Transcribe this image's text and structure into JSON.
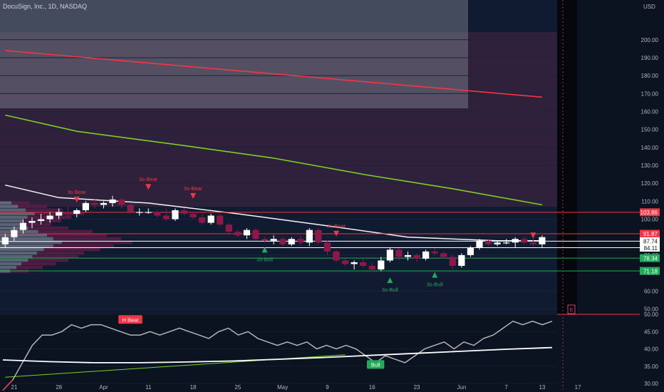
{
  "header": {
    "title": "DocuSign, Inc., 1D, NASDAQ",
    "currency": "USD"
  },
  "colors": {
    "background": "#0b1220",
    "bull": "#ffffff",
    "bear": "#8b1a4a",
    "ema_red": "#f23645",
    "ema_green": "#7ccf25",
    "sma_white": "#f5f5f5",
    "level_red": "#f23645",
    "level_green": "#22ab59",
    "signal_bear": "#f23645",
    "signal_bull": "#22ab59",
    "rsi_line": "#b5b5b5"
  },
  "chart_data": [
    {
      "type": "candlestick",
      "title": "DocuSign, Inc., 1D, NASDAQ",
      "ylabel": "USD",
      "ylim": [
        47,
        215
      ],
      "y_ticks": [
        50,
        60,
        70,
        80,
        90,
        100,
        110,
        120,
        130,
        140,
        150,
        160,
        170,
        180,
        190,
        200
      ],
      "x_tick_labels": [
        "21",
        "28",
        "Apr",
        "11",
        "18",
        "25",
        "May",
        "9",
        "16",
        "23",
        "Jun",
        "7",
        "13",
        "17"
      ],
      "x_tick_index": [
        1,
        6,
        11,
        16,
        21,
        26,
        31,
        36,
        41,
        46,
        51,
        56,
        60,
        64
      ],
      "candles": [
        {
          "o": 86,
          "h": 92,
          "l": 84,
          "c": 90
        },
        {
          "o": 90,
          "h": 96,
          "l": 88,
          "c": 94
        },
        {
          "o": 94,
          "h": 100,
          "l": 92,
          "c": 98
        },
        {
          "o": 98,
          "h": 101,
          "l": 95,
          "c": 99
        },
        {
          "o": 99,
          "h": 103,
          "l": 97,
          "c": 100
        },
        {
          "o": 100,
          "h": 104,
          "l": 98,
          "c": 102
        },
        {
          "o": 102,
          "h": 106,
          "l": 100,
          "c": 104
        },
        {
          "o": 104,
          "h": 107,
          "l": 101,
          "c": 103
        },
        {
          "o": 103,
          "h": 106,
          "l": 101,
          "c": 105
        },
        {
          "o": 105,
          "h": 110,
          "l": 104,
          "c": 109
        },
        {
          "o": 109,
          "h": 111,
          "l": 106,
          "c": 108
        },
        {
          "o": 108,
          "h": 110,
          "l": 106,
          "c": 109
        },
        {
          "o": 109,
          "h": 113,
          "l": 107,
          "c": 111
        },
        {
          "o": 111,
          "h": 112,
          "l": 106,
          "c": 108
        },
        {
          "o": 108,
          "h": 109,
          "l": 103,
          "c": 104
        },
        {
          "o": 104,
          "h": 106,
          "l": 102,
          "c": 104
        },
        {
          "o": 104,
          "h": 106,
          "l": 103,
          "c": 104
        },
        {
          "o": 104,
          "h": 105,
          "l": 101,
          "c": 102
        },
        {
          "o": 102,
          "h": 106,
          "l": 99,
          "c": 100
        },
        {
          "o": 100,
          "h": 106,
          "l": 99,
          "c": 105
        },
        {
          "o": 105,
          "h": 106,
          "l": 102,
          "c": 103
        },
        {
          "o": 103,
          "h": 104,
          "l": 100,
          "c": 101
        },
        {
          "o": 101,
          "h": 103,
          "l": 97,
          "c": 98
        },
        {
          "o": 98,
          "h": 103,
          "l": 97,
          "c": 102
        },
        {
          "o": 102,
          "h": 103,
          "l": 96,
          "c": 97
        },
        {
          "o": 97,
          "h": 98,
          "l": 91,
          "c": 93
        },
        {
          "o": 93,
          "h": 94,
          "l": 90,
          "c": 91
        },
        {
          "o": 91,
          "h": 95,
          "l": 89,
          "c": 94
        },
        {
          "o": 94,
          "h": 95,
          "l": 88,
          "c": 89
        },
        {
          "o": 89,
          "h": 90,
          "l": 87,
          "c": 88
        },
        {
          "o": 88,
          "h": 91,
          "l": 86,
          "c": 89
        },
        {
          "o": 89,
          "h": 90,
          "l": 85,
          "c": 86
        },
        {
          "o": 86,
          "h": 90,
          "l": 85,
          "c": 89
        },
        {
          "o": 89,
          "h": 91,
          "l": 85,
          "c": 87
        },
        {
          "o": 87,
          "h": 95,
          "l": 85,
          "c": 94
        },
        {
          "o": 94,
          "h": 95,
          "l": 86,
          "c": 87
        },
        {
          "o": 87,
          "h": 88,
          "l": 80,
          "c": 82
        },
        {
          "o": 82,
          "h": 83,
          "l": 76,
          "c": 77
        },
        {
          "o": 77,
          "h": 78,
          "l": 74,
          "c": 75
        },
        {
          "o": 75,
          "h": 77,
          "l": 72,
          "c": 76
        },
        {
          "o": 76,
          "h": 78,
          "l": 73,
          "c": 74
        },
        {
          "o": 74,
          "h": 76,
          "l": 71,
          "c": 72
        },
        {
          "o": 72,
          "h": 79,
          "l": 71,
          "c": 77
        },
        {
          "o": 77,
          "h": 84,
          "l": 76,
          "c": 83
        },
        {
          "o": 83,
          "h": 84,
          "l": 77,
          "c": 79
        },
        {
          "o": 79,
          "h": 82,
          "l": 77,
          "c": 80
        },
        {
          "o": 80,
          "h": 81,
          "l": 76,
          "c": 78
        },
        {
          "o": 78,
          "h": 83,
          "l": 77,
          "c": 82
        },
        {
          "o": 82,
          "h": 84,
          "l": 80,
          "c": 81
        },
        {
          "o": 81,
          "h": 82,
          "l": 78,
          "c": 79
        },
        {
          "o": 79,
          "h": 80,
          "l": 72,
          "c": 74
        },
        {
          "o": 74,
          "h": 81,
          "l": 73,
          "c": 80
        },
        {
          "o": 80,
          "h": 85,
          "l": 79,
          "c": 84
        },
        {
          "o": 84,
          "h": 89,
          "l": 83,
          "c": 88
        },
        {
          "o": 88,
          "h": 89,
          "l": 85,
          "c": 86
        },
        {
          "o": 86,
          "h": 88,
          "l": 85,
          "c": 87
        },
        {
          "o": 87,
          "h": 89,
          "l": 86,
          "c": 87
        },
        {
          "o": 87,
          "h": 90,
          "l": 84,
          "c": 89
        },
        {
          "o": 89,
          "h": 90,
          "l": 86,
          "c": 87
        },
        {
          "o": 87,
          "h": 91,
          "l": 85,
          "c": 86
        },
        {
          "o": 86,
          "h": 91,
          "l": 84,
          "c": 90
        }
      ],
      "ema_red": [
        [
          0,
          194
        ],
        [
          60,
          168
        ]
      ],
      "ema_green": [
        [
          0,
          158
        ],
        [
          8,
          149
        ],
        [
          20,
          141
        ],
        [
          30,
          134
        ],
        [
          40,
          125
        ],
        [
          50,
          117
        ],
        [
          60,
          108
        ]
      ],
      "sma_white": [
        [
          0,
          119
        ],
        [
          6,
          112
        ],
        [
          16,
          109
        ],
        [
          26,
          103
        ],
        [
          35,
          97
        ],
        [
          45,
          90
        ],
        [
          55,
          88
        ],
        [
          60,
          88
        ]
      ],
      "levels": [
        {
          "value": 103.86,
          "label": "103.86",
          "color": "red"
        },
        {
          "value": 91.87,
          "label": "91.87",
          "color": "red"
        },
        {
          "value": 87.74,
          "label": "87.74",
          "color": "white"
        },
        {
          "value": 84.11,
          "label": "84.11",
          "color": "white"
        },
        {
          "value": 78.34,
          "label": "78.34",
          "color": "green"
        },
        {
          "value": 71.18,
          "label": "71.18",
          "color": "green"
        }
      ],
      "signals_bear": [
        {
          "i": 8,
          "price": 111,
          "label": "3s-Bear"
        },
        {
          "i": 16,
          "price": 118,
          "label": "3s-Bear"
        },
        {
          "i": 21,
          "price": 113,
          "label": "3s-Bear"
        },
        {
          "i": 37,
          "price": 92,
          "label": "3s-Bear"
        },
        {
          "i": 59,
          "price": 91,
          "label": ""
        }
      ],
      "signals_bull": [
        {
          "i": 29,
          "price": 83,
          "label": "3s-Bull"
        },
        {
          "i": 43,
          "price": 66,
          "label": "3s-Bull"
        },
        {
          "i": 48,
          "price": 69,
          "label": "3s-Bull"
        }
      ]
    },
    {
      "type": "line",
      "title": "",
      "ylim": [
        30,
        50
      ],
      "y_ticks": [
        30,
        35,
        40,
        45,
        50
      ],
      "y_tick_labels": [
        "30.00",
        "35.00",
        "40.00",
        "45.00",
        "50.00"
      ],
      "series_rsi": [
        28,
        31,
        36,
        41,
        44,
        44,
        45,
        47,
        46,
        47,
        47,
        46,
        45,
        44,
        44,
        45,
        44,
        45,
        46,
        45,
        44,
        43,
        45,
        46,
        44,
        45,
        43,
        42,
        41,
        42,
        41,
        42,
        40,
        41,
        40,
        41,
        40,
        38,
        36,
        38,
        37,
        36,
        38,
        40,
        41,
        42,
        40,
        42,
        41,
        43,
        44,
        46,
        48,
        47,
        48,
        47,
        48
      ],
      "series_ma": [
        36.8,
        36.3,
        36.0,
        36.0,
        36.2,
        36.5,
        37.0,
        37.5,
        38.1,
        38.7,
        39.3,
        39.9,
        40.4
      ],
      "series_trend": [
        [
          0,
          31.8
        ],
        [
          38,
          38.3
        ]
      ],
      "labels": [
        {
          "text": "H Beat",
          "i": 13,
          "value": 48.5,
          "color": "red"
        },
        {
          "text": "Bull",
          "i": 38,
          "value": 35.5,
          "color": "green"
        }
      ]
    }
  ]
}
